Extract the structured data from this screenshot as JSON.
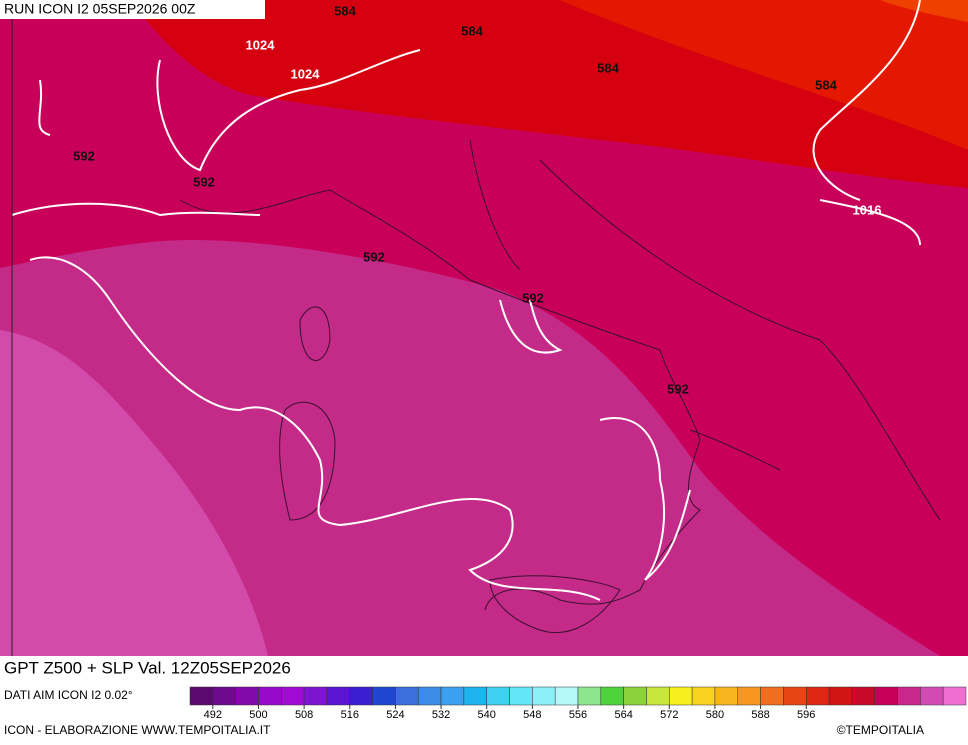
{
  "header": {
    "run": "RUN ICON I2 05SEP2026 00Z"
  },
  "map": {
    "contour_labels": [
      584,
      584,
      1024,
      1024,
      584,
      584,
      592,
      592,
      1016,
      592,
      592,
      592
    ]
  },
  "footer": {
    "title": "GPT Z500 + SLP Val. 12Z05SEP2026",
    "source": "DATI AIM ICON I2 0.02°",
    "credit": "ICON - ELABORAZIONE WWW.TEMPOITALIA.IT",
    "copyright": "©TEMPOITALIA"
  },
  "colorbar": {
    "start": 488,
    "step": 4,
    "colors": [
      "#5a0a6e",
      "#6e0a8c",
      "#820aaa",
      "#960ac8",
      "#a00ad2",
      "#7d14d2",
      "#5a14d2",
      "#3c1ed2",
      "#1e46d2",
      "#3c6edc",
      "#3c8ce6",
      "#3ca0f0",
      "#1eb4f0",
      "#3cd2f0",
      "#64e6f8",
      "#8cf0f8",
      "#b4f8fa",
      "#8ce68c",
      "#50d23c",
      "#8cd23c",
      "#c8e63c",
      "#f8f01e",
      "#f8d21e",
      "#f8b41e",
      "#f8961e",
      "#f06e1e",
      "#e64614",
      "#dc2814",
      "#d21414",
      "#c80a28",
      "#c8005a",
      "#c8288c",
      "#d24ab4",
      "#f06ed2"
    ],
    "ticks": [
      492,
      500,
      508,
      516,
      524,
      532,
      540,
      548,
      556,
      564,
      572,
      580,
      588,
      596
    ]
  }
}
